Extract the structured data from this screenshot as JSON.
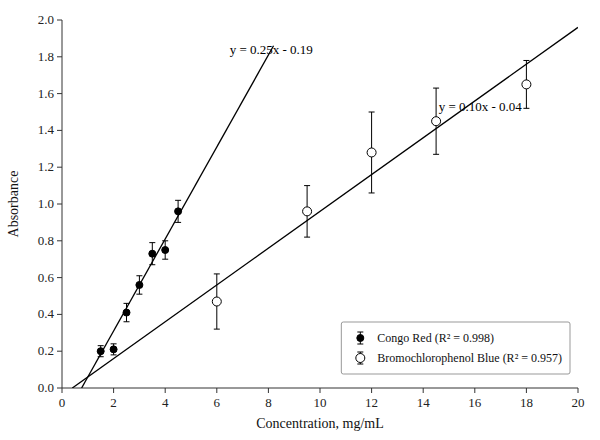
{
  "chart_data": {
    "type": "scatter",
    "title": "",
    "xlabel": "Concentration, mg/mL",
    "ylabel": "Absorbance",
    "xlim": [
      0,
      20
    ],
    "ylim": [
      0.0,
      2.0
    ],
    "xticks": [
      0,
      2,
      4,
      6,
      8,
      10,
      12,
      14,
      16,
      18,
      20
    ],
    "yticks": [
      {
        "value": 0.0,
        "label": "0.0"
      },
      0.2,
      0.4,
      0.6,
      0.8,
      {
        "value": 1.0,
        "label": "1.0"
      },
      1.2,
      1.4,
      1.6,
      1.8,
      {
        "value": 2.0,
        "label": "2.0"
      }
    ],
    "grid": false,
    "legend": "lower right",
    "series": [
      {
        "name": "Congo Red (R² = 0.998)",
        "type": "scatter",
        "marker": "circle",
        "color": "#000000",
        "x": [
          1.5,
          2.0,
          2.5,
          3.0,
          3.5,
          4.0,
          4.5
        ],
        "values": [
          0.2,
          0.21,
          0.41,
          0.56,
          0.73,
          0.75,
          0.96
        ],
        "errors": [
          0.03,
          0.03,
          0.05,
          0.05,
          0.06,
          0.05,
          0.06
        ]
      },
      {
        "name": "Bromochlorophenol Blue (R² = 0.957)",
        "type": "scatter",
        "marker": "open-circle",
        "color": "#000000",
        "x": [
          6.0,
          9.5,
          12.0,
          14.5,
          18.0
        ],
        "values": [
          0.47,
          0.96,
          1.28,
          1.45,
          1.65
        ],
        "errors": [
          0.15,
          0.14,
          0.22,
          0.18,
          0.13
        ]
      },
      {
        "type": "line",
        "line_style": "solid",
        "color": "#000000",
        "x": [
          0.76,
          8.2
        ],
        "values": [
          0.0,
          1.86
        ]
      },
      {
        "type": "line",
        "line_style": "solid",
        "color": "#000000",
        "x": [
          0.4,
          20.0
        ],
        "values": [
          0.0,
          1.96
        ]
      }
    ],
    "annotations": [
      {
        "text": "y = 0.25x - 0.19",
        "x": 6.5,
        "y": 1.83
      },
      {
        "text": "y = 0.10x - 0.04",
        "x": 14.6,
        "y": 1.52
      }
    ]
  }
}
